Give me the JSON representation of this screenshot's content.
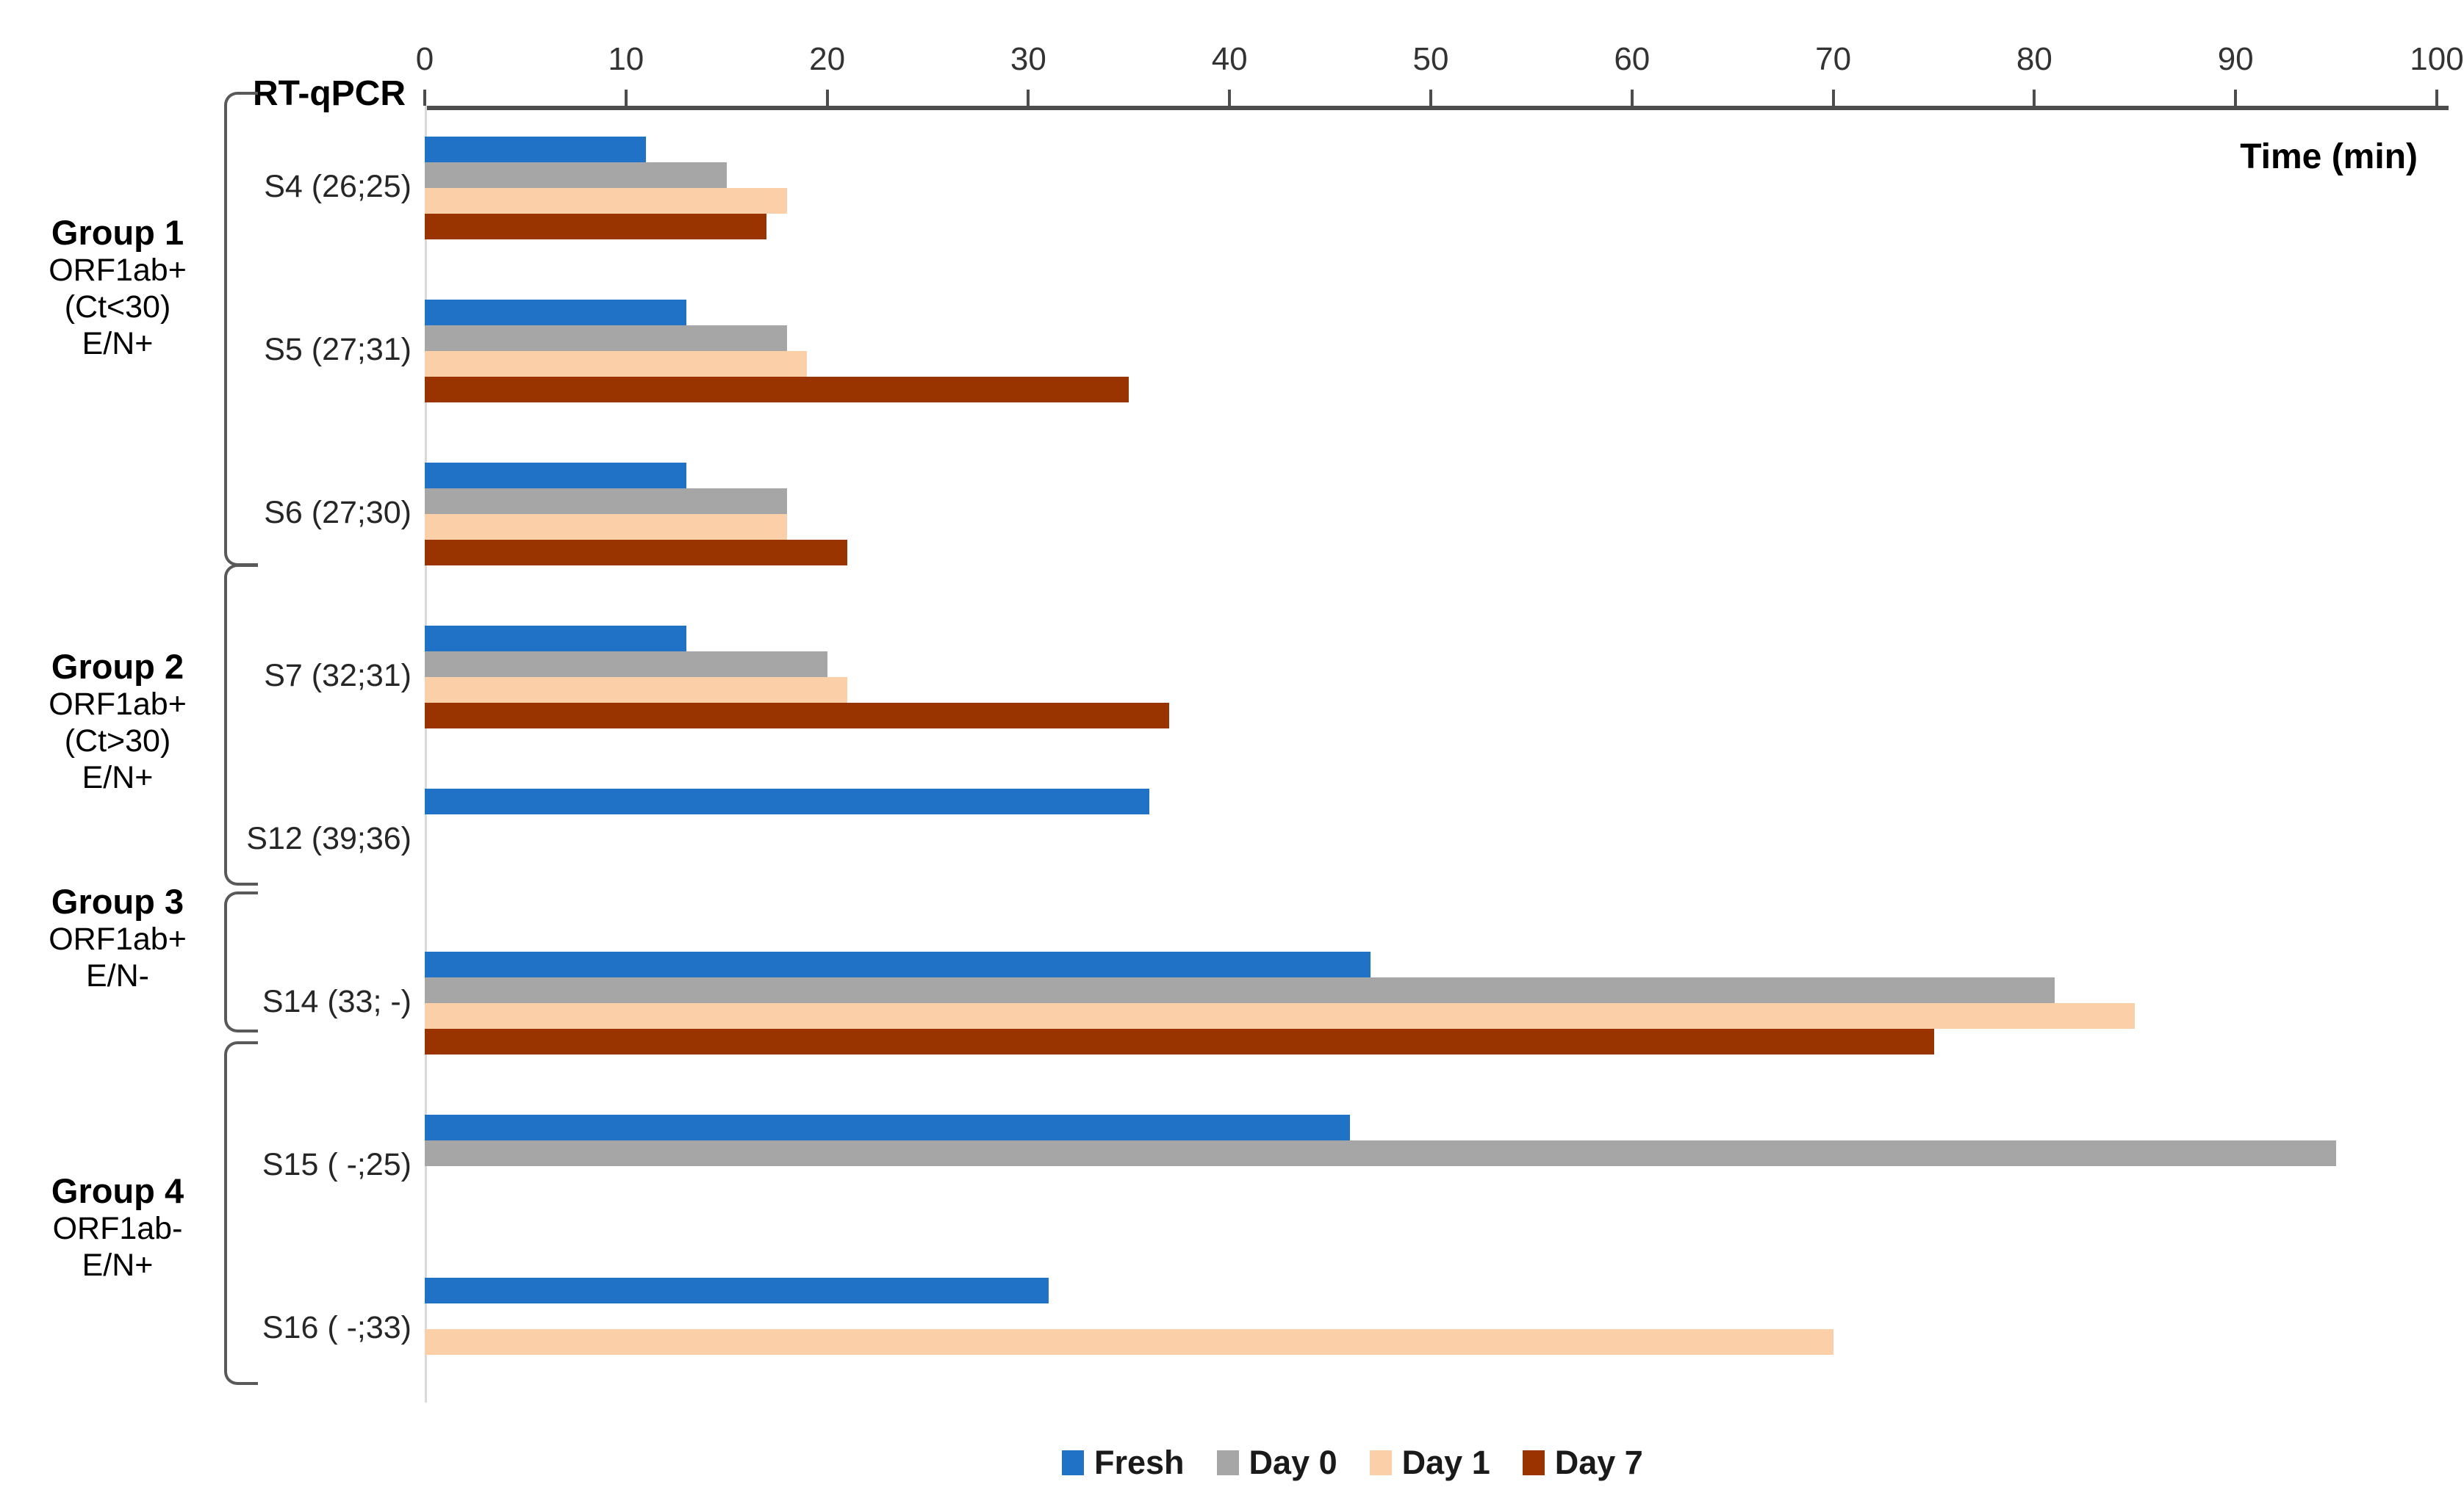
{
  "header": {
    "left_label": "RT-qPCR",
    "axis_title": "Time (min)"
  },
  "groups": [
    {
      "title": "Group 1",
      "subtitle_lines": [
        "ORF1ab+",
        "(Ct<30)",
        "E/N+"
      ]
    },
    {
      "title": "Group 2",
      "subtitle_lines": [
        "ORF1ab+",
        "(Ct>30)",
        "E/N+"
      ]
    },
    {
      "title": "Group 3",
      "subtitle_lines": [
        "ORF1ab+",
        "E/N-"
      ]
    },
    {
      "title": "Group 4",
      "subtitle_lines": [
        "ORF1ab-",
        "E/N+"
      ]
    }
  ],
  "chart_data": {
    "type": "bar",
    "orientation": "horizontal",
    "title": "",
    "xlabel": "Time (min)",
    "ylabel": "",
    "xlim": [
      0,
      100
    ],
    "x_ticks": [
      0,
      10,
      20,
      30,
      40,
      50,
      60,
      70,
      80,
      90,
      100
    ],
    "grid": false,
    "legend_position": "bottom",
    "categories": [
      "S4 (26;25)",
      "S5 (27;31)",
      "S6 (27;30)",
      "S7 (32;31)",
      "S12 (39;36)",
      "S14 (33; -)",
      "S15 ( -;25)",
      "S16 ( -;33)"
    ],
    "series": [
      {
        "name": "Fresh",
        "color": "#1F72C6",
        "values": [
          11,
          13,
          13,
          13,
          36,
          47,
          46,
          31
        ]
      },
      {
        "name": "Day 0",
        "color": "#A6A6A6",
        "values": [
          15,
          18,
          18,
          20,
          null,
          81,
          95,
          null
        ]
      },
      {
        "name": "Day 1",
        "color": "#FBCFA8",
        "values": [
          18,
          19,
          18,
          21,
          null,
          85,
          null,
          70
        ]
      },
      {
        "name": "Day 7",
        "color": "#993300",
        "values": [
          17,
          35,
          21,
          37,
          null,
          75,
          null,
          null
        ]
      }
    ],
    "group_spans": [
      {
        "group": "Group 1",
        "categories": [
          "S4 (26;25)",
          "S5 (27;31)",
          "S6 (27;30)"
        ]
      },
      {
        "group": "Group 2",
        "categories": [
          "S7 (32;31)",
          "S12 (39;36)"
        ]
      },
      {
        "group": "Group 3",
        "categories": [
          "S14 (33; -)"
        ]
      },
      {
        "group": "Group 4",
        "categories": [
          "S15 ( -;25)",
          "S16 ( -;33)"
        ]
      }
    ]
  }
}
